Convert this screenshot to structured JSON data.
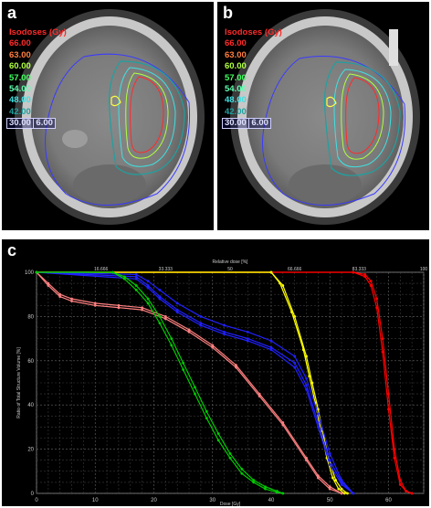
{
  "panels": {
    "a": {
      "letter": "a",
      "legend_title": "Isodoses (Gy)",
      "isodoses": [
        {
          "label": "66.00",
          "color": "#ff2a2a"
        },
        {
          "label": "63.00",
          "color": "#ff7f3f"
        },
        {
          "label": "60.00",
          "color": "#b0ff40"
        },
        {
          "label": "57.00",
          "color": "#40ff60"
        },
        {
          "label": "54.00",
          "color": "#60ffb0"
        },
        {
          "label": "48.00",
          "color": "#40e0e0"
        },
        {
          "label": "42.00",
          "color": "#20a0a0"
        },
        {
          "label": "30.00",
          "color": "#8080ff"
        },
        {
          "label": "6.00",
          "color": "#6060ff"
        }
      ]
    },
    "b": {
      "letter": "b",
      "legend_title": "Isodoses (Gy)",
      "isodoses": [
        {
          "label": "66.00",
          "color": "#ff2a2a"
        },
        {
          "label": "63.00",
          "color": "#ff7f3f"
        },
        {
          "label": "60.00",
          "color": "#b0ff40"
        },
        {
          "label": "57.00",
          "color": "#40ff60"
        },
        {
          "label": "54.00",
          "color": "#60ffb0"
        },
        {
          "label": "48.00",
          "color": "#40e0e0"
        },
        {
          "label": "42.00",
          "color": "#20a0a0"
        },
        {
          "label": "30.00",
          "color": "#8080ff"
        },
        {
          "label": "6.00",
          "color": "#6060ff"
        }
      ]
    },
    "c": {
      "letter": "c"
    }
  },
  "chart_data": {
    "type": "line",
    "xlabel": "Dose [Gy]",
    "ylabel": "Ratio of Total Structure Volume [%]",
    "top_axis_label": "Relative dose [%]",
    "xlim": [
      0,
      66
    ],
    "ylim": [
      0,
      100
    ],
    "x_ticks": [
      0,
      10,
      20,
      30,
      40,
      50,
      60
    ],
    "y_ticks": [
      0,
      20,
      40,
      60,
      80,
      100
    ],
    "top_ticks": [
      {
        "label": "16.666",
        "dose": 11
      },
      {
        "label": "33.333",
        "dose": 22
      },
      {
        "label": "50",
        "dose": 33
      },
      {
        "label": "66.666",
        "dose": 44
      },
      {
        "label": "83.333",
        "dose": 55
      },
      {
        "label": "100",
        "dose": 66
      }
    ],
    "colors": {
      "red": "#ff0000",
      "yellow": "#ffff00",
      "blue": "#2020ff",
      "salmon": "#ff8080",
      "green": "#00cc00"
    },
    "series": [
      {
        "color_key": "red",
        "x": [
          0,
          54,
          56,
          57,
          58,
          59,
          60,
          61,
          62,
          63,
          64
        ],
        "y": [
          100,
          100,
          99,
          96,
          88,
          70,
          45,
          20,
          6,
          1,
          0
        ]
      },
      {
        "color_key": "red",
        "x": [
          0,
          54,
          56,
          57,
          58,
          59,
          60,
          61,
          62,
          63,
          64
        ],
        "y": [
          100,
          100,
          98,
          94,
          84,
          64,
          38,
          16,
          4,
          1,
          0
        ]
      },
      {
        "color_key": "yellow",
        "x": [
          0,
          40,
          42,
          44,
          46,
          47,
          48,
          49,
          50,
          51,
          52,
          53
        ],
        "y": [
          100,
          100,
          94,
          80,
          62,
          50,
          38,
          25,
          14,
          6,
          2,
          0
        ]
      },
      {
        "color_key": "yellow",
        "x": [
          0,
          40,
          41.5,
          43.5,
          45.5,
          46.5,
          47.5,
          48.5,
          49.5,
          50.5,
          51.5,
          52.5
        ],
        "y": [
          100,
          100,
          95,
          82,
          65,
          53,
          41,
          28,
          16,
          7,
          2,
          0
        ]
      },
      {
        "color_key": "blue",
        "x": [
          0,
          17,
          19,
          21,
          24,
          28,
          32,
          36,
          40,
          44,
          46,
          48,
          50,
          52,
          54
        ],
        "y": [
          100,
          99,
          96,
          92,
          86,
          80,
          76,
          73,
          69,
          62,
          52,
          36,
          18,
          6,
          0
        ]
      },
      {
        "color_key": "blue",
        "x": [
          0,
          17,
          19,
          21,
          24,
          28,
          32,
          36,
          40,
          44,
          46,
          48,
          50,
          52,
          54
        ],
        "y": [
          100,
          98,
          94,
          89,
          83,
          77,
          73,
          70,
          66,
          59,
          49,
          32,
          15,
          5,
          0
        ]
      },
      {
        "color_key": "blue",
        "x": [
          0,
          17,
          19,
          21,
          24,
          28,
          32,
          36,
          40,
          44,
          46,
          48,
          50,
          52,
          54
        ],
        "y": [
          100,
          97,
          93,
          88,
          82,
          76,
          72,
          69,
          65,
          57,
          47,
          30,
          13,
          4,
          0
        ]
      },
      {
        "color_key": "salmon",
        "x": [
          0,
          2,
          4,
          6,
          10,
          14,
          18,
          22,
          26,
          30,
          34,
          38,
          42,
          46,
          48,
          50,
          52
        ],
        "y": [
          100,
          95,
          90,
          88,
          86,
          85,
          84,
          80,
          74,
          67,
          58,
          45,
          32,
          16,
          8,
          3,
          0
        ]
      },
      {
        "color_key": "salmon",
        "x": [
          0,
          2,
          4,
          6,
          10,
          14,
          18,
          22,
          26,
          30,
          34,
          38,
          42,
          46,
          48,
          50,
          52
        ],
        "y": [
          100,
          94,
          89,
          87,
          85,
          84,
          83,
          79,
          73,
          66,
          57,
          44,
          31,
          15,
          7,
          2,
          0
        ]
      },
      {
        "color_key": "green",
        "x": [
          0,
          13,
          15,
          17,
          19,
          21,
          23,
          25,
          27,
          29,
          31,
          33,
          35,
          37,
          39,
          41,
          42
        ],
        "y": [
          100,
          100,
          98,
          94,
          88,
          80,
          70,
          59,
          48,
          37,
          27,
          18,
          11,
          6,
          3,
          1,
          0
        ]
      },
      {
        "color_key": "green",
        "x": [
          0,
          13,
          15,
          17,
          19,
          21,
          23,
          25,
          27,
          29,
          31,
          33,
          35,
          37,
          39,
          41,
          42
        ],
        "y": [
          100,
          100,
          97,
          92,
          86,
          77,
          67,
          56,
          45,
          34,
          24,
          16,
          9,
          5,
          2,
          0.5,
          0
        ]
      }
    ]
  }
}
